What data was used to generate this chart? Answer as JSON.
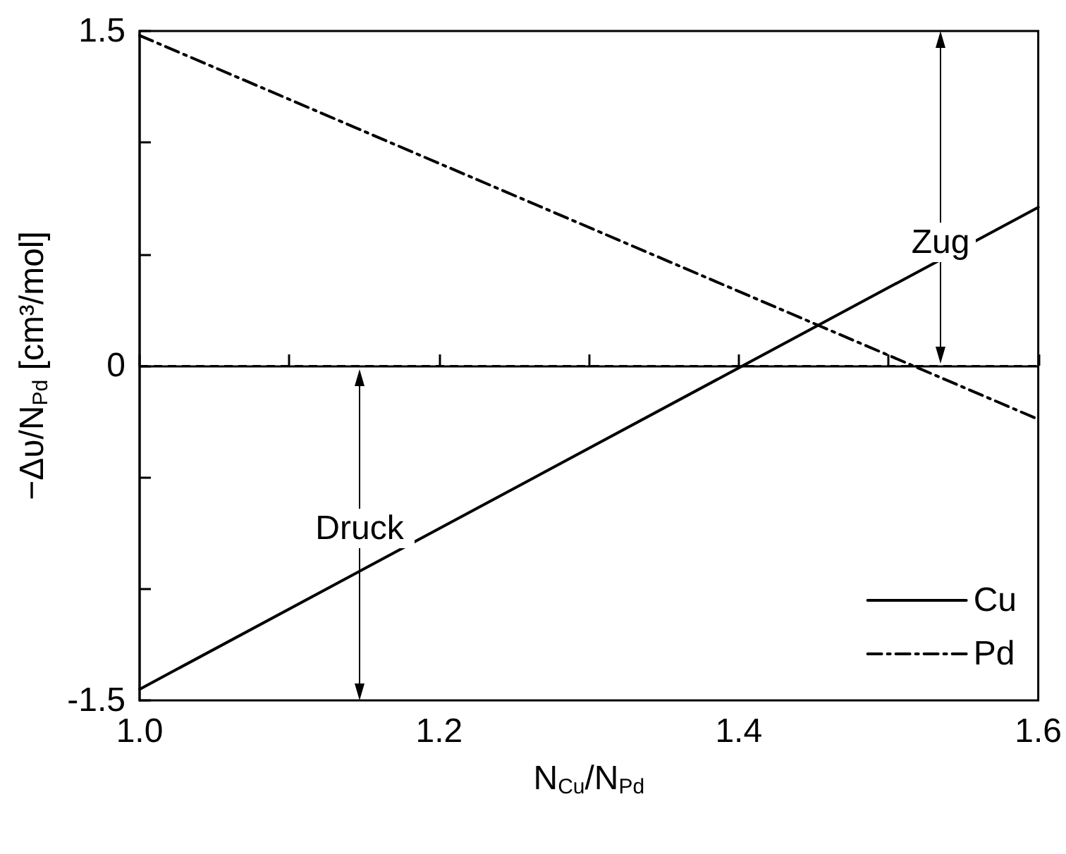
{
  "chart_data": {
    "type": "line",
    "xlabel": "N$_{Cu}$/N$_{Pd}$",
    "ylabel": "−Δυ/N$_{Pd}$ [cm³/mol]",
    "xlim": [
      1.0,
      1.6
    ],
    "ylim": [
      -1.5,
      1.5
    ],
    "x": [
      1.0,
      1.6
    ],
    "xticks": [
      {
        "value": 1.0,
        "label": "1.0"
      },
      {
        "value": 1.1,
        "label": null
      },
      {
        "value": 1.2,
        "label": "1.2"
      },
      {
        "value": 1.3,
        "label": null
      },
      {
        "value": 1.4,
        "label": "1.4"
      },
      {
        "value": 1.5,
        "label": null
      },
      {
        "value": 1.6,
        "label": "1.6"
      }
    ],
    "yticks": [
      {
        "value": -1.5,
        "label": "-1.5"
      },
      {
        "value": -1,
        "label": null
      },
      {
        "value": -0.5,
        "label": null
      },
      {
        "value": 0,
        "label": "0"
      },
      {
        "value": 0.5,
        "label": null
      },
      {
        "value": 1,
        "label": null
      },
      {
        "value": 1.5,
        "label": "1.5"
      }
    ],
    "series": [
      {
        "name": "Cu",
        "color": "#000000",
        "values": [
          -1.45,
          0.71
        ],
        "line_style": "solid"
      },
      {
        "name": "Pd",
        "color": "#000000",
        "values": [
          1.48,
          -0.24
        ],
        "line_style": "dashdot"
      }
    ],
    "ref_lines": [
      {
        "axis": "y",
        "value": 0,
        "line_style": "dashed",
        "color": "#000000"
      }
    ],
    "annotations": [
      "Zug",
      "Druck"
    ],
    "legend": "bottom right",
    "marker": "none",
    "grid": false
  }
}
